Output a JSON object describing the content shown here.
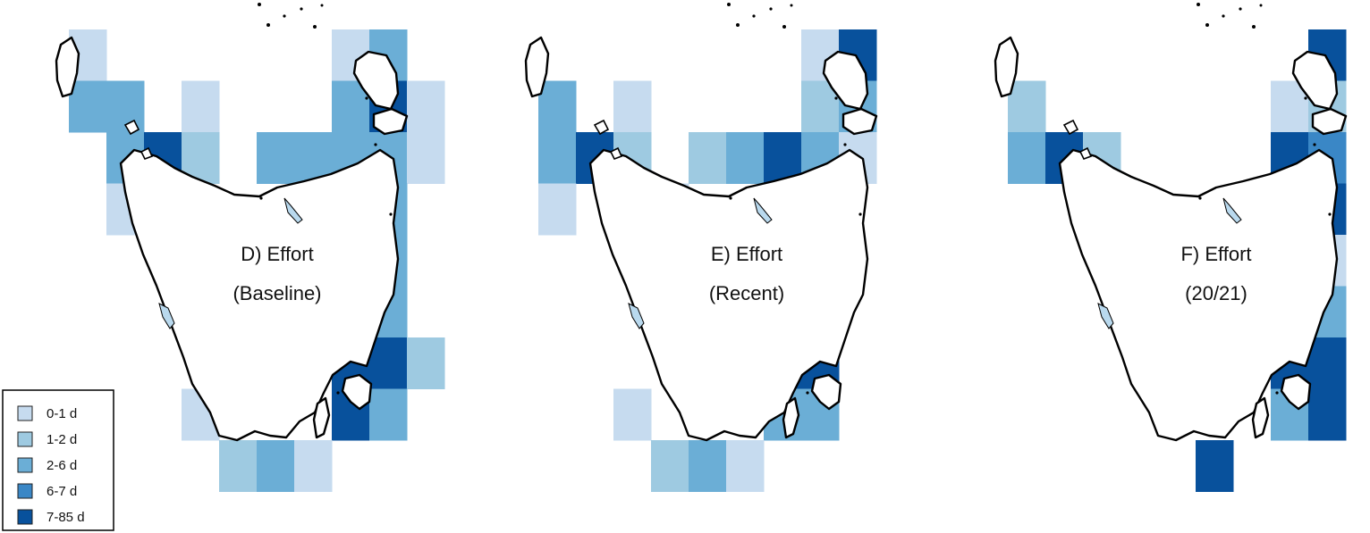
{
  "figure": {
    "panels": [
      {
        "id": "D",
        "title_line1": "D) Effort",
        "title_line2": "(Baseline)",
        "cells": [
          [
            "0-1 d",
            0,
            0
          ],
          [
            "0-1 d",
            7,
            0
          ],
          [
            "2-6 d",
            8,
            0
          ],
          [
            "2-6 d",
            0,
            1
          ],
          [
            "2-6 d",
            1,
            1
          ],
          [
            "0-1 d",
            3,
            1
          ],
          [
            "2-6 d",
            7,
            1
          ],
          [
            "7-85 d",
            8,
            1
          ],
          [
            "0-1 d",
            9,
            1
          ],
          [
            "2-6 d",
            1,
            2
          ],
          [
            "7-85 d",
            2,
            2
          ],
          [
            "1-2 d",
            3,
            2
          ],
          [
            "2-6 d",
            5,
            2
          ],
          [
            "2-6 d",
            6,
            2
          ],
          [
            "2-6 d",
            7,
            2
          ],
          [
            "2-6 d",
            8,
            2
          ],
          [
            "0-1 d",
            9,
            2
          ],
          [
            "0-1 d",
            1,
            3
          ],
          [
            "2-6 d",
            8,
            3
          ],
          [
            "2-6 d",
            8,
            4
          ],
          [
            "2-6 d",
            8,
            5
          ],
          [
            "7-85 d",
            7,
            6
          ],
          [
            "7-85 d",
            8,
            6
          ],
          [
            "1-2 d",
            9,
            6
          ],
          [
            "0-1 d",
            3,
            7
          ],
          [
            "7-85 d",
            7,
            7
          ],
          [
            "2-6 d",
            8,
            7
          ],
          [
            "1-2 d",
            4,
            8
          ],
          [
            "2-6 d",
            5,
            8
          ],
          [
            "0-1 d",
            6,
            8
          ]
        ]
      },
      {
        "id": "E",
        "title_line1": "E) Effort",
        "title_line2": "(Recent)",
        "cells": [
          [
            "0-1 d",
            7,
            0
          ],
          [
            "7-85 d",
            8,
            0
          ],
          [
            "2-6 d",
            0,
            1
          ],
          [
            "0-1 d",
            2,
            1
          ],
          [
            "1-2 d",
            7,
            1
          ],
          [
            "2-6 d",
            8,
            1
          ],
          [
            "2-6 d",
            0,
            2
          ],
          [
            "7-85 d",
            1,
            2
          ],
          [
            "1-2 d",
            2,
            2
          ],
          [
            "1-2 d",
            4,
            2
          ],
          [
            "2-6 d",
            5,
            2
          ],
          [
            "7-85 d",
            6,
            2
          ],
          [
            "2-6 d",
            7,
            2
          ],
          [
            "0-1 d",
            8,
            2
          ],
          [
            "0-1 d",
            0,
            3
          ],
          [
            "0-1 d",
            3,
            3
          ],
          [
            "7-85 d",
            7,
            3
          ],
          [
            "7-85 d",
            7,
            4
          ],
          [
            "2-6 d",
            7,
            5
          ],
          [
            "7-85 d",
            6,
            6
          ],
          [
            "7-85 d",
            7,
            6
          ],
          [
            "0-1 d",
            2,
            7
          ],
          [
            "2-6 d",
            6,
            7
          ],
          [
            "2-6 d",
            7,
            7
          ],
          [
            "1-2 d",
            3,
            8
          ],
          [
            "2-6 d",
            4,
            8
          ],
          [
            "0-1 d",
            5,
            8
          ]
        ]
      },
      {
        "id": "F",
        "title_line1": "F) Effort",
        "title_line2": "(20/21)",
        "cells": [
          [
            "7-85 d",
            8,
            0
          ],
          [
            "1-2 d",
            0,
            1
          ],
          [
            "0-1 d",
            7,
            1
          ],
          [
            "1-2 d",
            8,
            1
          ],
          [
            "2-6 d",
            0,
            2
          ],
          [
            "7-85 d",
            1,
            2
          ],
          [
            "1-2 d",
            2,
            2
          ],
          [
            "7-85 d",
            7,
            2
          ],
          [
            "6-7 d",
            8,
            2
          ],
          [
            "7-85 d",
            8,
            3
          ],
          [
            "0-1 d",
            8,
            4
          ],
          [
            "2-6 d",
            8,
            5
          ],
          [
            "7-85 d",
            7,
            6
          ],
          [
            "7-85 d",
            8,
            6
          ],
          [
            "2-6 d",
            7,
            7
          ],
          [
            "7-85 d",
            8,
            7
          ],
          [
            "7-85 d",
            5,
            8
          ]
        ]
      }
    ]
  },
  "legend": {
    "items": [
      {
        "label": "0-1 d",
        "color": "#c6dbef"
      },
      {
        "label": "1-2 d",
        "color": "#9ecae1"
      },
      {
        "label": "2-6 d",
        "color": "#6baed6"
      },
      {
        "label": "6-7 d",
        "color": "#3a87c6"
      },
      {
        "label": "7-85 d",
        "color": "#08519c"
      }
    ]
  }
}
